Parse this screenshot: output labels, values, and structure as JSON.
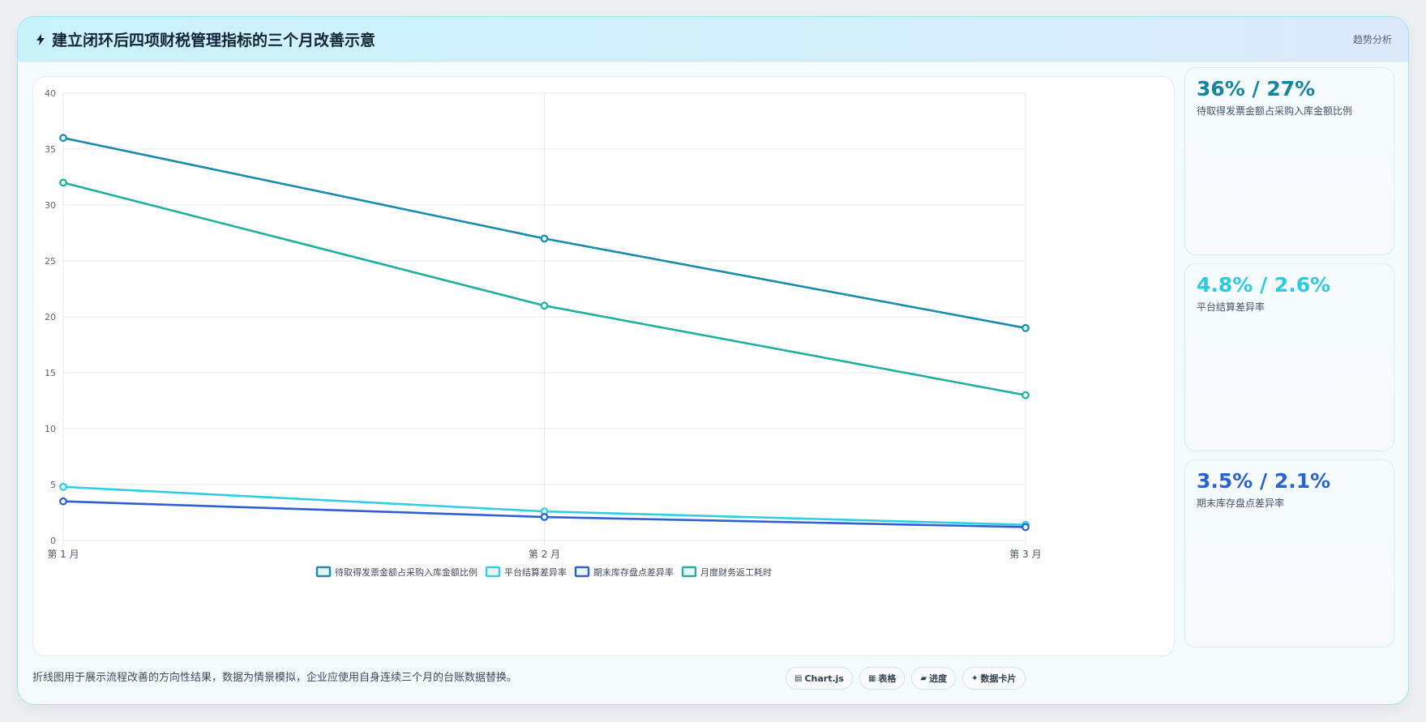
{
  "header": {
    "title": "建立闭环后四项财税管理指标的三个月改善示意",
    "tag": "趋势分析"
  },
  "chart_data": {
    "type": "line",
    "categories": [
      "第 1 月",
      "第 2 月",
      "第 3 月"
    ],
    "series": [
      {
        "name": "待取得发票金额占采购入库金额比例",
        "values": [
          36,
          27,
          19
        ],
        "color": "#1a8aad"
      },
      {
        "name": "平台结算差异率",
        "values": [
          4.8,
          2.6,
          1.4
        ],
        "color": "#2fcfe3"
      },
      {
        "name": "期末库存盘点差异率",
        "values": [
          3.5,
          2.1,
          1.2
        ],
        "color": "#2f5fd0"
      },
      {
        "name": "月度财务返工耗时",
        "values": [
          32,
          21,
          13
        ],
        "color": "#20b0a0"
      }
    ],
    "ylim": [
      0,
      40
    ],
    "yticks": [
      0,
      5,
      10,
      15,
      20,
      25,
      30,
      35,
      40
    ],
    "grid": true,
    "legend_position": "bottom"
  },
  "kpis": [
    {
      "value": "36% / 27%",
      "label": "待取得发票金额占采购入库金额比例",
      "color": "#13869e"
    },
    {
      "value": "4.8% / 2.6%",
      "label": "平台结算差异率",
      "color": "#2ccbe0"
    },
    {
      "value": "3.5% / 2.1%",
      "label": "期末库存盘点差异率",
      "color": "#2b62d2"
    }
  ],
  "footer": {
    "note": "折线图用于展示流程改善的方向性结果，数据为情景模拟，企业应使用自身连续三个月的台账数据替换。",
    "chips": [
      {
        "icon": "▤",
        "label": "Chart.js"
      },
      {
        "icon": "▦",
        "label": "表格"
      },
      {
        "icon": "▰",
        "label": "进度"
      },
      {
        "icon": "✦",
        "label": "数据卡片"
      }
    ]
  }
}
